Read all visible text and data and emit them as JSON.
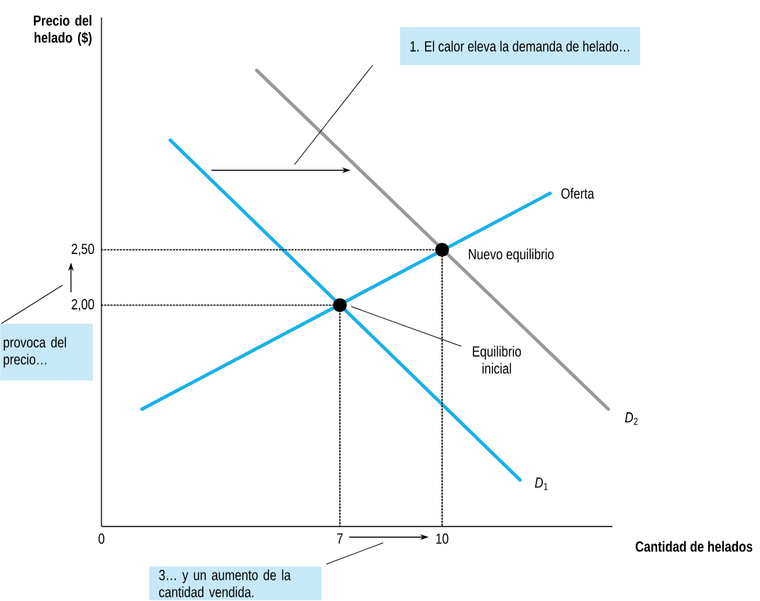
{
  "chart_data": {
    "type": "line",
    "xlabel": "Cantidad de helados",
    "ylabel": "Precio del helado ($)",
    "xlim": [
      0,
      15
    ],
    "ylim": [
      0,
      4.6
    ],
    "xticks": [
      0,
      7,
      10
    ],
    "yticks": [
      {
        "value": 2,
        "label": "2,00"
      },
      {
        "value": 2.5,
        "label": "2,50"
      }
    ],
    "series": [
      {
        "name": "*D*$_{1}$",
        "color": "#1ab0e8",
        "x": [
          2.02,
          12.29
        ],
        "values": [
          3.49,
          0.42
        ],
        "line_style": "solid",
        "marker": "none"
      },
      {
        "name": "Oferta",
        "color": "#1ab0e8",
        "x": [
          1.19,
          13.17
        ],
        "values": [
          1.06,
          3.01
        ],
        "line_style": "solid",
        "marker": "none"
      },
      {
        "name": "*D*$_{2}$",
        "color": "#999999",
        "x": [
          4.56,
          14.88
        ],
        "values": [
          4.12,
          1.06
        ],
        "line_style": "solid",
        "marker": "none"
      },
      {
        "color": "#000000",
        "x": [
          0,
          7,
          7
        ],
        "values": [
          2,
          2,
          0
        ],
        "line_style": "dotted",
        "marker": "none"
      },
      {
        "color": "#000000",
        "x": [
          0,
          10,
          10
        ],
        "values": [
          2.5,
          2.5,
          0
        ],
        "line_style": "dotted",
        "marker": "none"
      },
      {
        "type": "scatter",
        "color": "#000000",
        "x": [
          7,
          10
        ],
        "values": [
          2,
          2.5
        ],
        "marker": "circle"
      }
    ],
    "annotations": [
      "1. El calor eleva la demanda de helado…",
      "provoca del precio…",
      "3… y un aumento de la cantidad vendida.",
      {
        "text": "Nuevo equilibrio",
        "x": 10,
        "y": 2.5
      },
      "Equilibrio inicial"
    ]
  }
}
